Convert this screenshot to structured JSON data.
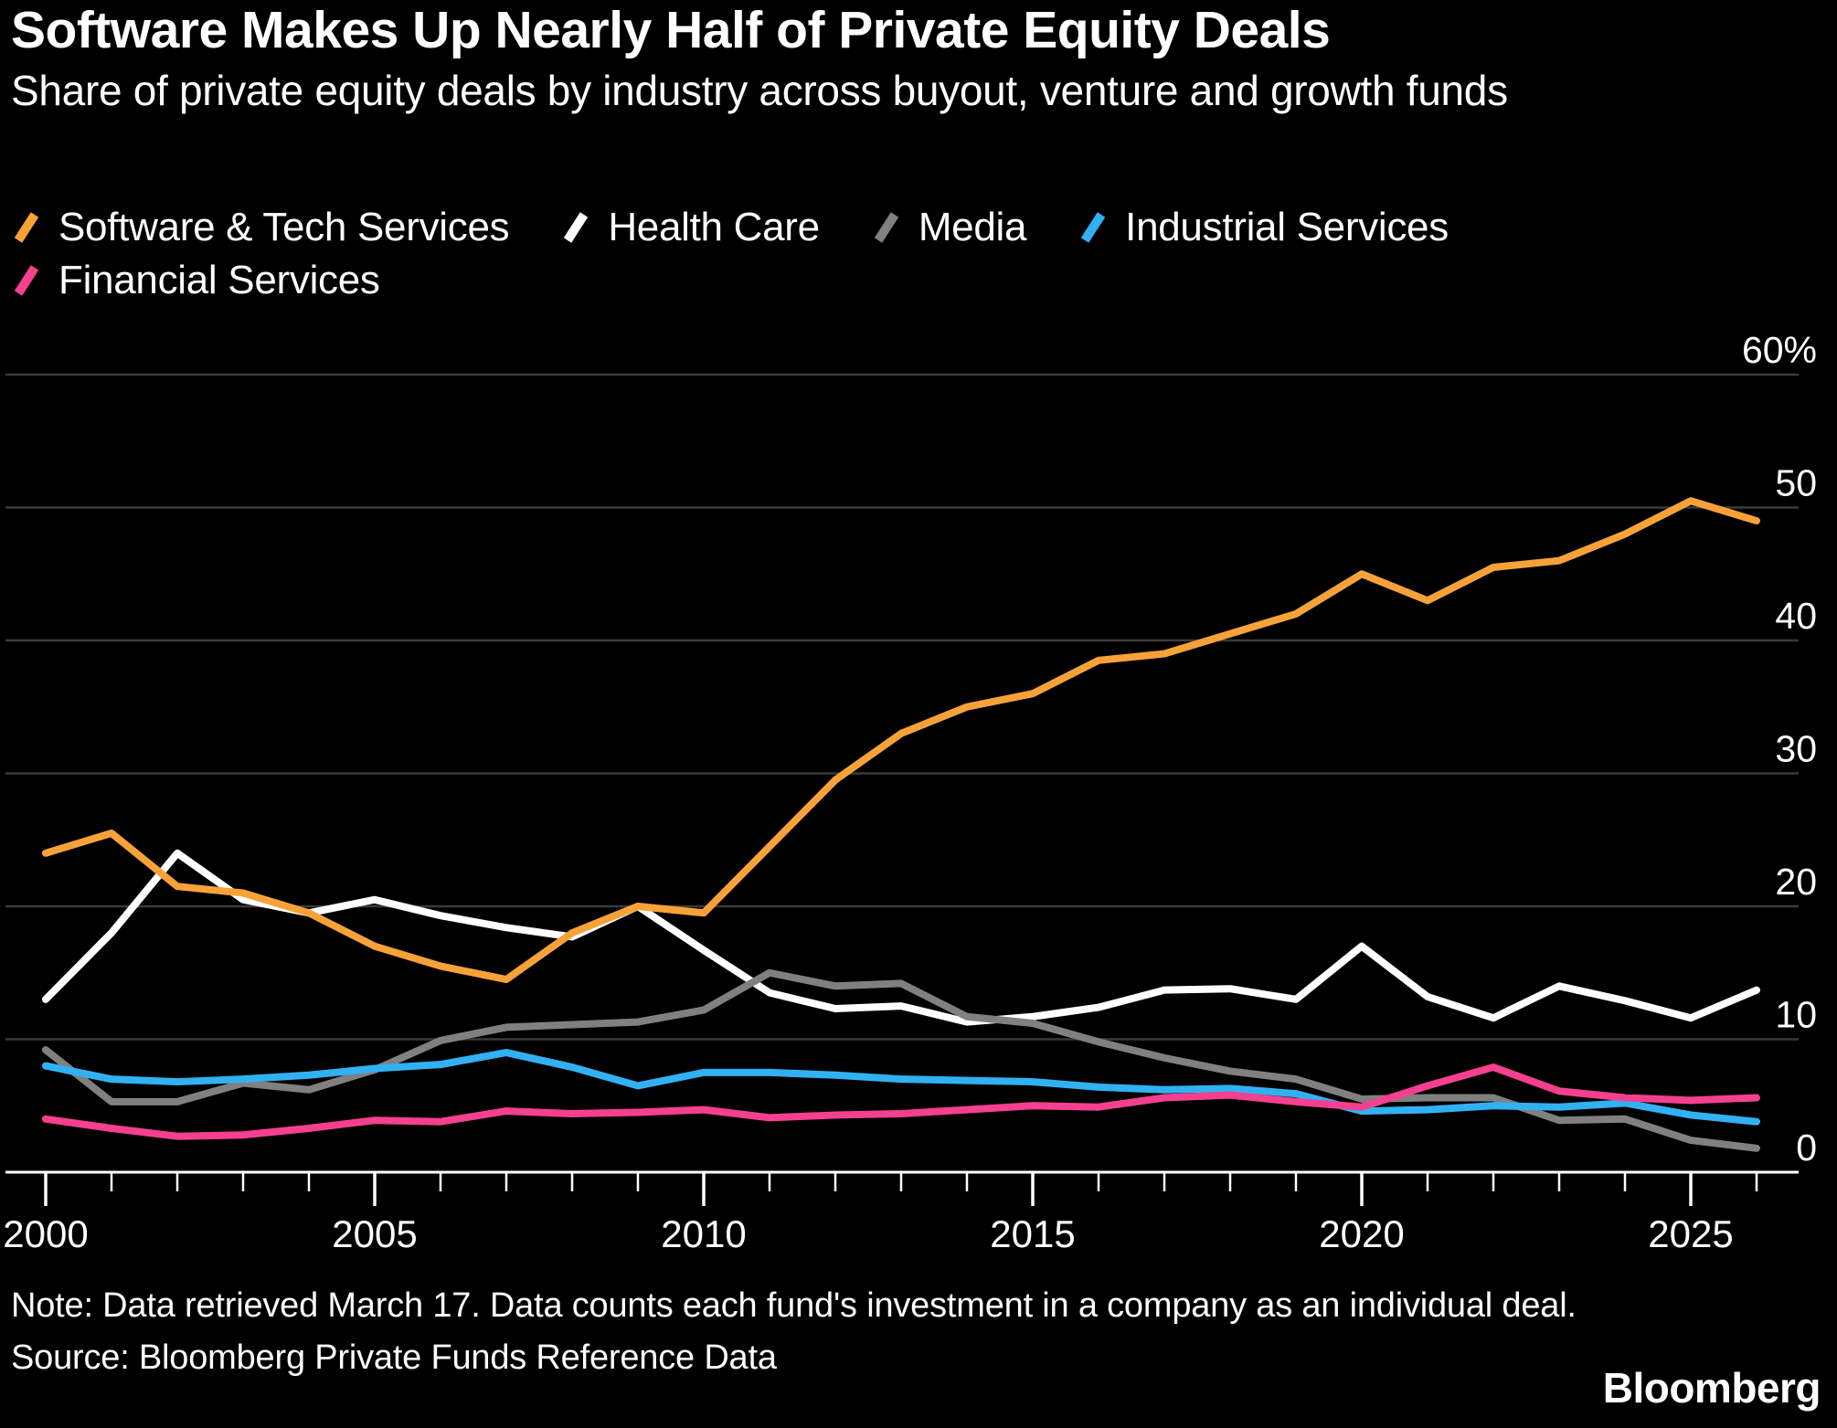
{
  "header": {
    "title": "Software Makes Up Nearly Half of Private Equity Deals",
    "subtitle": "Share of private equity deals by industry across buyout, venture and growth funds"
  },
  "legend": {
    "items": [
      {
        "label": "Software & Tech Services",
        "color": "#F7A239"
      },
      {
        "label": "Health Care",
        "color": "#FFFFFF"
      },
      {
        "label": "Media",
        "color": "#808080"
      },
      {
        "label": "Industrial Services",
        "color": "#32B1F2"
      },
      {
        "label": "Financial Services",
        "color": "#F5408F"
      }
    ]
  },
  "chart_data": {
    "type": "line",
    "title": "Share of private equity deals by industry across buyout, venture and growth funds",
    "x": [
      2000,
      2001,
      2002,
      2003,
      2004,
      2005,
      2006,
      2007,
      2008,
      2009,
      2010,
      2011,
      2012,
      2013,
      2014,
      2015,
      2016,
      2017,
      2018,
      2019,
      2020,
      2021,
      2022,
      2023,
      2024,
      2025,
      2026
    ],
    "series": [
      {
        "name": "Health Care",
        "color": "#FFFFFF",
        "values": [
          13,
          18,
          24,
          20.5,
          19.5,
          20.5,
          19.3,
          18.4,
          17.7,
          20,
          16.7,
          13.5,
          12.3,
          12.5,
          11.3,
          11.7,
          12.4,
          13.7,
          13.8,
          13,
          17,
          13.2,
          11.6,
          14,
          12.9,
          11.6,
          13.7
        ]
      },
      {
        "name": "Media",
        "color": "#808080",
        "values": [
          9.2,
          5.3,
          5.3,
          6.7,
          6.2,
          7.7,
          9.9,
          10.9,
          11.1,
          11.3,
          12.2,
          15,
          14,
          14.2,
          11.7,
          11.2,
          9.8,
          8.6,
          7.6,
          7,
          5.5,
          5.6,
          5.6,
          3.9,
          4,
          2.4,
          1.8
        ]
      },
      {
        "name": "Industrial Services",
        "color": "#32B1F2",
        "values": [
          8,
          7,
          6.8,
          7,
          7.3,
          7.8,
          8.1,
          9,
          7.9,
          6.5,
          7.5,
          7.5,
          7.3,
          7,
          6.9,
          6.8,
          6.4,
          6.2,
          6.3,
          5.9,
          4.6,
          4.7,
          5,
          4.9,
          5.2,
          4.3,
          3.8
        ]
      },
      {
        "name": "Financial Services",
        "color": "#F5408F",
        "values": [
          4,
          3.3,
          2.7,
          2.8,
          3.3,
          3.9,
          3.8,
          4.6,
          4.4,
          4.5,
          4.7,
          4.1,
          4.3,
          4.4,
          4.7,
          5,
          4.9,
          5.6,
          5.8,
          5.3,
          4.9,
          6.5,
          7.9,
          6.1,
          5.6,
          5.4,
          5.6
        ]
      },
      {
        "name": "Software & Tech Services",
        "color": "#F7A239",
        "values": [
          24,
          25.5,
          21.5,
          21,
          19.5,
          17,
          15.5,
          14.5,
          18,
          20,
          19.5,
          24.5,
          29.5,
          33,
          35,
          36,
          38.5,
          39,
          40.5,
          42,
          45,
          43,
          45.5,
          46,
          48,
          50.5,
          49
        ]
      }
    ],
    "xlabel": "",
    "ylabel": "",
    "ylim": [
      0,
      60
    ],
    "yticks": {
      "values": [
        60,
        50,
        40,
        30,
        20,
        10,
        0
      ],
      "labels": [
        "60%",
        "50",
        "40",
        "30",
        "20",
        "10",
        "0"
      ]
    },
    "xticks_labeled": {
      "values": [
        2000,
        2005,
        2010,
        2015,
        2020,
        2025
      ],
      "labels": [
        "2000",
        "2005",
        "2010",
        "2015",
        "2020",
        "2025"
      ]
    },
    "grid": "horizontal",
    "legend_position": "top-left",
    "background_color": "#000000",
    "grid_color": "#3A3A3A",
    "axis_color": "#FFFFFF",
    "tick_label_color": "#FFFFFF"
  },
  "footer": {
    "note": "Note: Data retrieved March 17. Data counts each fund's investment in a company as an individual deal.",
    "source": "Source: Bloomberg Private Funds Reference Data",
    "brand": "Bloomberg"
  }
}
